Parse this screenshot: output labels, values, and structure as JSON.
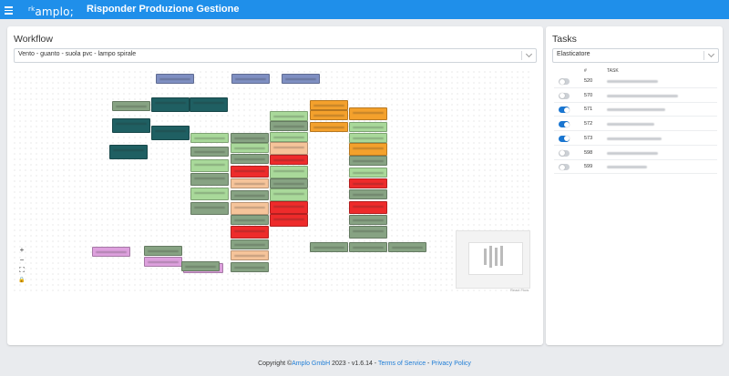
{
  "header": {
    "logo_text": "amplo",
    "title": "Risponder Produzione Gestione"
  },
  "workflow": {
    "title": "Workflow",
    "selected": "Vento - guanto - suola pvc - lampo spirale",
    "controls": {
      "zoom_in": "+",
      "zoom_out": "−",
      "fit_view": "⛶",
      "lock": "🔒"
    },
    "attribution": "React Flow"
  },
  "tasks": {
    "title": "Tasks",
    "selected": "Elasticatore",
    "columns": {
      "num": "#",
      "task": "TASK"
    },
    "rows": [
      {
        "num": "520",
        "on": false
      },
      {
        "num": "570",
        "on": false
      },
      {
        "num": "571",
        "on": true
      },
      {
        "num": "572",
        "on": true
      },
      {
        "num": "573",
        "on": true
      },
      {
        "num": "598",
        "on": false
      },
      {
        "num": "599",
        "on": false
      }
    ]
  },
  "colors": {
    "primary": "#1f8fea",
    "node_blue": "#7f8fc2",
    "node_teal": "#1f5f62",
    "node_green": "#87a383",
    "node_lightgreen": "#a9d99a",
    "node_peach": "#f6c49a",
    "node_orange": "#f4a12c",
    "node_red": "#ee2b2b",
    "node_pink": "#dda0dd"
  },
  "footer": {
    "copyright_prefix": "Copyright ©",
    "company": "Amplo GmbH",
    "year_version": "2023  -  v1.6.14  -",
    "terms": "Terms of Service",
    "sep": "-",
    "privacy": "Privacy Policy"
  }
}
